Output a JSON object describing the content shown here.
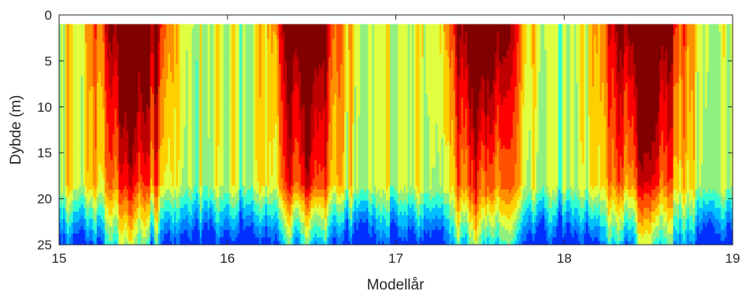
{
  "chart_data": {
    "type": "heatmap",
    "title": "",
    "xlabel": "Modellår",
    "ylabel": "Dybde (m)",
    "xlim": [
      15,
      19
    ],
    "ylim": [
      25,
      0
    ],
    "y_reversed": true,
    "grid": false,
    "colormap": "jet",
    "x_ticks": [
      "15",
      "16",
      "17",
      "18",
      "19"
    ],
    "y_ticks": [
      "0",
      "5",
      "10",
      "15",
      "20",
      "25"
    ],
    "x_tick_values": [
      15,
      16,
      17,
      18,
      19
    ],
    "y_tick_values": [
      0,
      5,
      10,
      15,
      20,
      25
    ],
    "depth_range": [
      1,
      25
    ],
    "colors": [
      "#0030ff",
      "#0080ff",
      "#00c0ff",
      "#30ffd0",
      "#90f080",
      "#e0ff40",
      "#ffd000",
      "#ff9000",
      "#ff5000",
      "#ff0000",
      "#c00000",
      "#800000"
    ],
    "seasonal_warm_events": [
      {
        "center": 15.45,
        "width": 0.26
      },
      {
        "center": 16.47,
        "width": 0.23
      },
      {
        "center": 17.52,
        "width": 0.25
      },
      {
        "center": 18.48,
        "width": 0.28
      }
    ]
  }
}
